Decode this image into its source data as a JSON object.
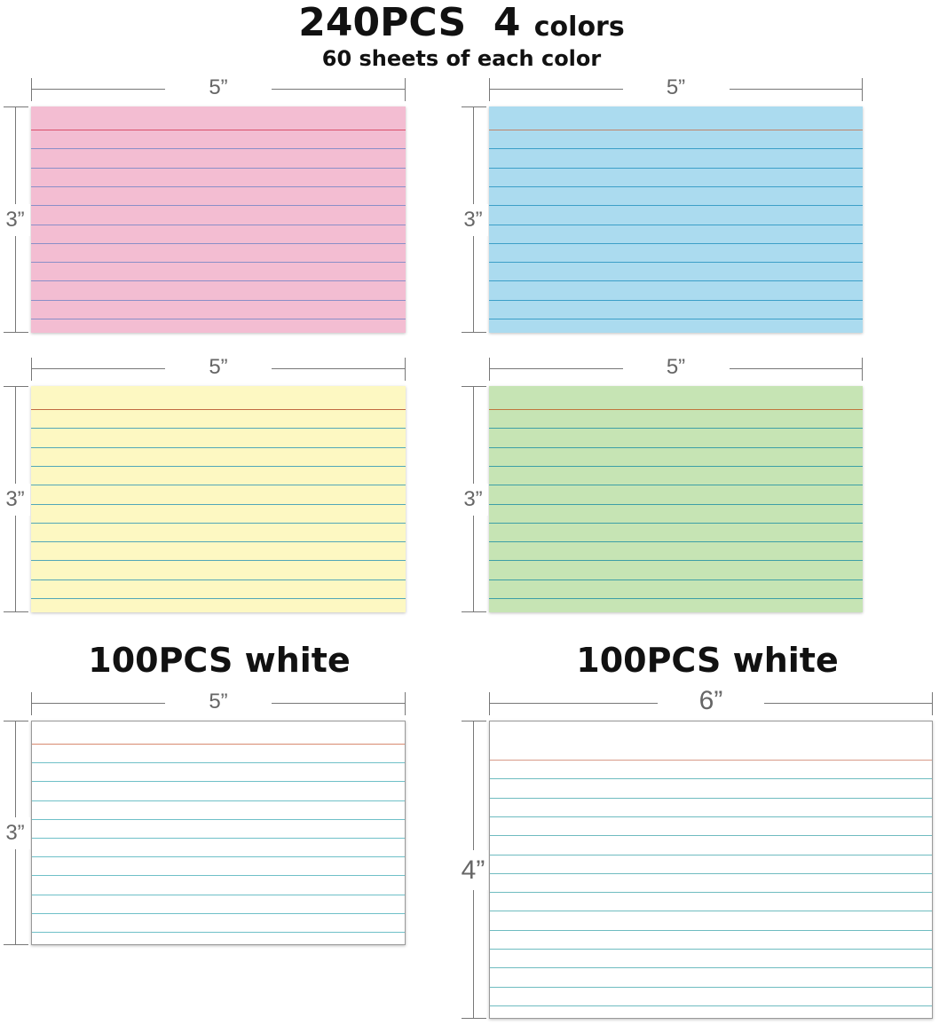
{
  "header": {
    "count": "240PCS",
    "colors_count": "4",
    "colors_word": "colors",
    "subtitle": "60 sheets of each color"
  },
  "white_sections": [
    {
      "label": "100PCS white"
    },
    {
      "label": "100PCS white"
    }
  ],
  "cards": [
    {
      "name": "pink",
      "color": "#f3bdd2",
      "rule_color": "#8a8fc8",
      "top_rule_color": "#d9506a",
      "width_label": "5”",
      "height_label": "3”",
      "lines": 12
    },
    {
      "name": "blue",
      "color": "#abdbef",
      "rule_color": "#3c9fc8",
      "top_rule_color": "#c0846a",
      "width_label": "5”",
      "height_label": "3”",
      "lines": 12
    },
    {
      "name": "yellow",
      "color": "#fdf8c2",
      "rule_color": "#52a7b8",
      "top_rule_color": "#c06a40",
      "width_label": "5”",
      "height_label": "3”",
      "lines": 12
    },
    {
      "name": "green",
      "color": "#c6e4b4",
      "rule_color": "#3d9fa6",
      "top_rule_color": "#c0753c",
      "width_label": "5”",
      "height_label": "3”",
      "lines": 12
    },
    {
      "name": "white-3x5",
      "color": "#ffffff",
      "rule_color": "#6fc0c8",
      "top_rule_color": "#d88a70",
      "width_label": "5”",
      "height_label": "3”",
      "lines": 12
    },
    {
      "name": "white-4x6",
      "color": "#ffffff",
      "rule_color": "#6fbcc0",
      "top_rule_color": "#d89a88",
      "width_label": "6”",
      "height_label": "4”",
      "lines": 14
    }
  ]
}
